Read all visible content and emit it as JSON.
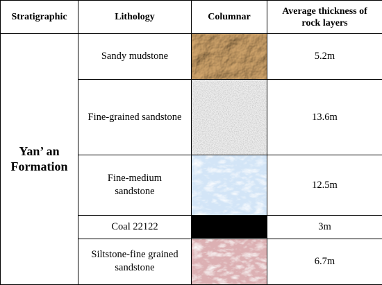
{
  "headers": {
    "stratigraphic": "Stratigraphic",
    "lithology": "Lithology",
    "columnar": "Columnar",
    "thickness_line1": "Average thickness of",
    "thickness_line2": "rock layers"
  },
  "formation": {
    "line1": "Yan’ an",
    "line2": "Formation"
  },
  "rows": [
    {
      "lithology": "Sandy mudstone",
      "lithology_line2": "",
      "pattern": "crumpled-brown-paper",
      "color": "#b98b55",
      "thickness": "5.2m"
    },
    {
      "lithology": "Fine-grained sandstone",
      "lithology_line2": "",
      "pattern": "speckled-white",
      "color": "#ededed",
      "thickness": "13.6m"
    },
    {
      "lithology": "Fine-medium",
      "lithology_line2": "sandstone",
      "pattern": "light-blue-texture",
      "color": "#d3e5f7",
      "thickness": "12.5m"
    },
    {
      "lithology": "Coal 22122",
      "lithology_line2": "",
      "pattern": "solid-black",
      "color": "#000000",
      "thickness": "3m"
    },
    {
      "lithology": "Siltstone-fine grained",
      "lithology_line2": "sandstone",
      "pattern": "pink-texture",
      "color": "#dcb0b3",
      "thickness": "6.7m"
    }
  ]
}
